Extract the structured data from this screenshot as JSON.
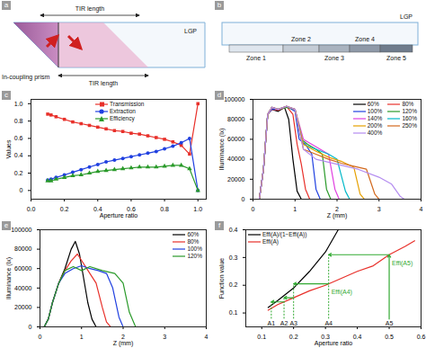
{
  "diagrams": {
    "a": {
      "panel": "a",
      "top_label": "TIR length",
      "bottom_label": "TIR length",
      "prism": "In-coupling prism",
      "lgp": "LGP"
    },
    "b": {
      "panel": "b",
      "lgp": "LGP",
      "zones": [
        "Zone 1",
        "Zone 2",
        "Zone 3",
        "Zone 4",
        "Zone 5"
      ]
    }
  },
  "chart_data": [
    {
      "panel": "c",
      "type": "line",
      "x_label": "Aperture ratio",
      "y_label": "Values",
      "x": [
        0.1,
        0.12,
        0.15,
        0.2,
        0.25,
        0.3,
        0.35,
        0.4,
        0.45,
        0.5,
        0.55,
        0.6,
        0.65,
        0.7,
        0.75,
        0.8,
        0.85,
        0.9,
        0.95,
        1.0
      ],
      "series": [
        {
          "name": "Transmission",
          "color": "#e8302a",
          "marker": "square",
          "values": [
            0.88,
            0.87,
            0.85,
            0.82,
            0.79,
            0.77,
            0.75,
            0.73,
            0.71,
            0.69,
            0.68,
            0.66,
            0.65,
            0.63,
            0.61,
            0.59,
            0.56,
            0.52,
            0.42,
            1.0
          ]
        },
        {
          "name": "Extraction",
          "color": "#2040e0",
          "marker": "circle",
          "values": [
            0.12,
            0.13,
            0.15,
            0.18,
            0.21,
            0.24,
            0.27,
            0.3,
            0.33,
            0.35,
            0.37,
            0.39,
            0.41,
            0.43,
            0.45,
            0.48,
            0.51,
            0.55,
            0.6,
            0.0
          ]
        },
        {
          "name": "Efficiency",
          "color": "#2a9a2a",
          "marker": "triangle",
          "values": [
            0.11,
            0.11,
            0.13,
            0.15,
            0.17,
            0.18,
            0.2,
            0.22,
            0.23,
            0.24,
            0.25,
            0.26,
            0.27,
            0.27,
            0.27,
            0.28,
            0.29,
            0.29,
            0.25,
            0.0
          ]
        }
      ],
      "xlim": [
        0,
        1.05
      ],
      "ylim": [
        -0.1,
        1.05
      ],
      "xticks": [
        {
          "value": 0,
          "label": "0.0"
        },
        0.2,
        0.4,
        0.6,
        0.8,
        {
          "value": 1,
          "label": "1.0"
        }
      ],
      "yticks": [
        0,
        0.2,
        0.4,
        0.6,
        0.8,
        {
          "value": 1,
          "label": "1.0"
        }
      ],
      "legend": "top"
    },
    {
      "panel": "d",
      "type": "line",
      "x_label": "Z (mm)",
      "y_label": "Illuminance (lx)",
      "series": [
        {
          "name": "60%",
          "color": "#000000",
          "x": [
            0.15,
            0.25,
            0.35,
            0.45,
            0.6,
            0.75,
            0.85,
            0.95,
            1.05,
            1.15
          ],
          "values": [
            0,
            30000,
            85000,
            90000,
            88000,
            92000,
            80000,
            40000,
            8000,
            0
          ]
        },
        {
          "name": "80%",
          "color": "#e8302a",
          "x": [
            0.15,
            0.25,
            0.35,
            0.45,
            0.6,
            0.8,
            0.95,
            1.05,
            1.15,
            1.25,
            1.35
          ],
          "values": [
            0,
            30000,
            85000,
            90000,
            89000,
            93000,
            85000,
            55000,
            35000,
            10000,
            0
          ]
        },
        {
          "name": "100%",
          "color": "#2040e0",
          "x": [
            0.15,
            0.25,
            0.35,
            0.45,
            0.6,
            0.8,
            1.0,
            1.1,
            1.25,
            1.4,
            1.5,
            1.6
          ],
          "values": [
            0,
            30000,
            85000,
            90000,
            90000,
            93000,
            88000,
            60000,
            55000,
            45000,
            10000,
            0
          ]
        },
        {
          "name": "120%",
          "color": "#2a9a2a",
          "x": [
            0.15,
            0.25,
            0.35,
            0.45,
            0.6,
            0.8,
            1.0,
            1.15,
            1.3,
            1.5,
            1.65,
            1.75,
            1.85
          ],
          "values": [
            0,
            30000,
            85000,
            92000,
            90000,
            92000,
            90000,
            60000,
            55000,
            50000,
            45000,
            10000,
            0
          ]
        },
        {
          "name": "140%",
          "color": "#e040e0",
          "x": [
            0.15,
            0.25,
            0.35,
            0.45,
            0.6,
            0.8,
            1.0,
            1.2,
            1.4,
            1.6,
            1.8,
            1.95,
            2.05
          ],
          "values": [
            0,
            30000,
            85000,
            92000,
            90000,
            93000,
            90000,
            60000,
            55000,
            50000,
            45000,
            10000,
            0
          ]
        },
        {
          "name": "160%",
          "color": "#00b8c8",
          "x": [
            0.15,
            0.25,
            0.35,
            0.45,
            0.6,
            0.8,
            1.0,
            1.2,
            1.5,
            1.8,
            2.0,
            2.2,
            2.3
          ],
          "values": [
            0,
            30000,
            85000,
            92000,
            90000,
            93000,
            90000,
            55000,
            50000,
            45000,
            40000,
            8000,
            0
          ]
        },
        {
          "name": "200%",
          "color": "#e6a000",
          "x": [
            0.15,
            0.25,
            0.35,
            0.45,
            0.6,
            0.8,
            1.0,
            1.2,
            1.5,
            1.8,
            2.1,
            2.4,
            2.55,
            2.65
          ],
          "values": [
            0,
            30000,
            85000,
            92000,
            90000,
            93000,
            90000,
            55000,
            48000,
            42000,
            38000,
            32000,
            5000,
            0
          ]
        },
        {
          "name": "250%",
          "color": "#d2691e",
          "x": [
            0.15,
            0.25,
            0.35,
            0.45,
            0.6,
            0.8,
            1.0,
            1.2,
            1.5,
            1.8,
            2.1,
            2.4,
            2.7,
            2.9,
            3.0
          ],
          "values": [
            0,
            30000,
            85000,
            92000,
            90000,
            93000,
            90000,
            50000,
            45000,
            40000,
            36000,
            33000,
            30000,
            5000,
            0
          ]
        },
        {
          "name": "400%",
          "color": "#b48cf0",
          "x": [
            0.15,
            0.25,
            0.35,
            0.45,
            0.6,
            0.8,
            1.0,
            1.2,
            1.5,
            2.0,
            2.5,
            3.0,
            3.3,
            3.5,
            3.6
          ],
          "values": [
            0,
            30000,
            85000,
            92000,
            90000,
            93000,
            90000,
            50000,
            40000,
            35000,
            30000,
            22000,
            15000,
            3000,
            0
          ]
        }
      ],
      "xlim": [
        0,
        4
      ],
      "ylim": [
        0,
        100000
      ],
      "xticks": [
        0,
        1,
        2,
        3,
        4
      ],
      "yticks": [
        0,
        20000,
        40000,
        60000,
        80000,
        100000
      ],
      "legend": "top-right"
    },
    {
      "panel": "e",
      "type": "line",
      "x_label": "Z (mm)",
      "y_label": "Illuminance (lx)",
      "series": [
        {
          "name": "60%",
          "color": "#000000",
          "x": [
            0.1,
            0.2,
            0.3,
            0.45,
            0.6,
            0.75,
            0.85,
            0.95,
            1.05,
            1.15,
            1.25,
            1.35
          ],
          "values": [
            0,
            8000,
            25000,
            45000,
            60000,
            80000,
            88000,
            75000,
            50000,
            25000,
            8000,
            0
          ]
        },
        {
          "name": "80%",
          "color": "#e8302a",
          "x": [
            0.1,
            0.2,
            0.3,
            0.45,
            0.6,
            0.75,
            0.9,
            1.05,
            1.2,
            1.35,
            1.5,
            1.6,
            1.7
          ],
          "values": [
            0,
            8000,
            25000,
            45000,
            58000,
            68000,
            75000,
            65000,
            55000,
            45000,
            20000,
            5000,
            0
          ]
        },
        {
          "name": "100%",
          "color": "#2040e0",
          "x": [
            0.1,
            0.2,
            0.3,
            0.45,
            0.6,
            0.8,
            1.0,
            1.2,
            1.4,
            1.6,
            1.75,
            1.9,
            2.0
          ],
          "values": [
            0,
            8000,
            25000,
            45000,
            55000,
            60000,
            63000,
            60000,
            58000,
            55000,
            40000,
            10000,
            0
          ]
        },
        {
          "name": "120%",
          "color": "#2a9a2a",
          "x": [
            0.1,
            0.2,
            0.3,
            0.45,
            0.6,
            0.8,
            1.0,
            1.2,
            1.5,
            1.8,
            2.0,
            2.15,
            2.3
          ],
          "values": [
            0,
            8000,
            25000,
            45000,
            58000,
            62000,
            58000,
            62000,
            58000,
            55000,
            45000,
            15000,
            0
          ]
        }
      ],
      "xlim": [
        0,
        4
      ],
      "ylim": [
        0,
        100000
      ],
      "xticks": [
        0,
        1,
        2,
        3,
        4
      ],
      "yticks": [
        0,
        20000,
        40000,
        60000,
        80000,
        100000
      ],
      "legend": "top-right"
    },
    {
      "panel": "f",
      "type": "line",
      "x_label": "Aperture ratio",
      "y_label": "Function value",
      "series": [
        {
          "name": "Effi(A)/(1−Effi(A))",
          "color": "#000000",
          "x": [
            0.12,
            0.15,
            0.2,
            0.25,
            0.3,
            0.34
          ],
          "values": [
            0.12,
            0.145,
            0.19,
            0.25,
            0.32,
            0.4
          ]
        },
        {
          "name": "Effi(A)",
          "color": "#e8302a",
          "x": [
            0.12,
            0.15,
            0.2,
            0.25,
            0.3,
            0.35,
            0.4,
            0.45,
            0.5,
            0.55,
            0.58
          ],
          "values": [
            0.11,
            0.13,
            0.155,
            0.18,
            0.2,
            0.225,
            0.25,
            0.27,
            0.31,
            0.34,
            0.36
          ]
        }
      ],
      "markers": {
        "color": "#33aa33",
        "points": [
          {
            "label": "A1",
            "value": 0.13
          },
          {
            "label": "A2",
            "value": 0.17
          },
          {
            "label": "A3",
            "value": 0.2
          },
          {
            "label": "A4",
            "value": 0.31
          },
          {
            "label": "A5",
            "value": 0.5
          }
        ]
      },
      "annotations": [
        {
          "text": "Effi(A4)",
          "at": "A4",
          "series": "Effi(A)"
        },
        {
          "text": "Effi(A5)",
          "at": "A5",
          "series": "Effi(A)"
        }
      ],
      "xlim": [
        0.05,
        0.6
      ],
      "ylim": [
        0.05,
        0.4
      ],
      "xticks": [
        0.1,
        0.2,
        0.3,
        0.4,
        0.5,
        0.6
      ],
      "yticks": [
        0.1,
        0.2,
        0.3,
        0.4
      ],
      "legend": "top-left"
    }
  ]
}
